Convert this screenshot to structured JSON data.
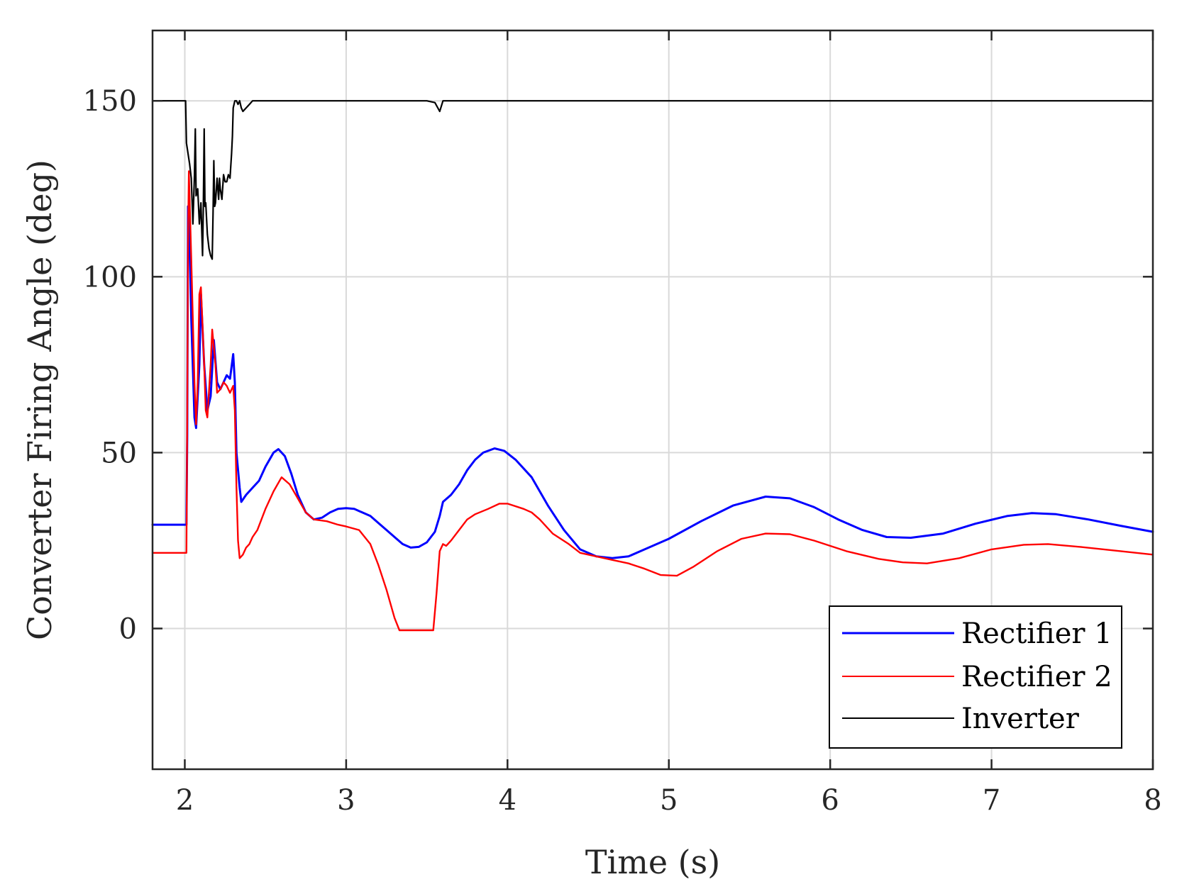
{
  "chart_data": {
    "type": "line",
    "title": "",
    "xlabel": "Time (s)",
    "ylabel": "Converter Firing Angle (deg)",
    "xlim": [
      1.8,
      8
    ],
    "ylim": [
      -40,
      170
    ],
    "xticks": [
      2,
      3,
      4,
      5,
      6,
      7,
      8
    ],
    "yticks": [
      0,
      50,
      100,
      150
    ],
    "xtick_labels": [
      "2",
      "3",
      "4",
      "5",
      "6",
      "7",
      "8"
    ],
    "ytick_labels": [
      "0",
      "50",
      "100",
      "150"
    ],
    "grid": true,
    "legend_position": "bottom-right",
    "series": [
      {
        "name": "Rectifier 1",
        "color": "#0000ff",
        "points": [
          [
            1.8,
            29.5
          ],
          [
            2.0,
            29.5
          ],
          [
            2.01,
            29.5
          ],
          [
            2.015,
            55
          ],
          [
            2.02,
            120
          ],
          [
            2.03,
            110
          ],
          [
            2.04,
            88
          ],
          [
            2.06,
            60
          ],
          [
            2.07,
            57
          ],
          [
            2.09,
            75
          ],
          [
            2.1,
            95
          ],
          [
            2.12,
            75
          ],
          [
            2.14,
            62
          ],
          [
            2.16,
            66
          ],
          [
            2.18,
            82
          ],
          [
            2.2,
            70
          ],
          [
            2.22,
            68
          ],
          [
            2.24,
            70
          ],
          [
            2.26,
            72
          ],
          [
            2.28,
            71
          ],
          [
            2.3,
            78
          ],
          [
            2.31,
            70
          ],
          [
            2.32,
            50
          ],
          [
            2.34,
            40
          ],
          [
            2.35,
            36
          ],
          [
            2.38,
            38
          ],
          [
            2.42,
            40
          ],
          [
            2.46,
            42
          ],
          [
            2.5,
            46
          ],
          [
            2.55,
            50
          ],
          [
            2.58,
            51
          ],
          [
            2.62,
            49
          ],
          [
            2.66,
            44
          ],
          [
            2.7,
            38
          ],
          [
            2.75,
            33
          ],
          [
            2.8,
            31
          ],
          [
            2.85,
            31.5
          ],
          [
            2.9,
            33
          ],
          [
            2.95,
            34
          ],
          [
            3.0,
            34.2
          ],
          [
            3.05,
            34
          ],
          [
            3.1,
            33
          ],
          [
            3.15,
            32
          ],
          [
            3.2,
            30
          ],
          [
            3.25,
            28
          ],
          [
            3.3,
            26
          ],
          [
            3.35,
            24
          ],
          [
            3.4,
            23
          ],
          [
            3.45,
            23.2
          ],
          [
            3.5,
            24.5
          ],
          [
            3.55,
            27.5
          ],
          [
            3.58,
            32
          ],
          [
            3.6,
            36
          ],
          [
            3.65,
            38
          ],
          [
            3.7,
            41
          ],
          [
            3.75,
            45
          ],
          [
            3.8,
            48
          ],
          [
            3.85,
            50
          ],
          [
            3.92,
            51.2
          ],
          [
            3.98,
            50.5
          ],
          [
            4.05,
            48
          ],
          [
            4.15,
            43
          ],
          [
            4.25,
            35
          ],
          [
            4.35,
            28
          ],
          [
            4.45,
            22.5
          ],
          [
            4.55,
            20.5
          ],
          [
            4.65,
            20
          ],
          [
            4.75,
            20.5
          ],
          [
            4.85,
            22.5
          ],
          [
            5.0,
            25.5
          ],
          [
            5.2,
            30.5
          ],
          [
            5.4,
            35
          ],
          [
            5.6,
            37.5
          ],
          [
            5.75,
            37
          ],
          [
            5.9,
            34.5
          ],
          [
            6.05,
            31
          ],
          [
            6.2,
            28
          ],
          [
            6.35,
            26
          ],
          [
            6.5,
            25.8
          ],
          [
            6.7,
            27
          ],
          [
            6.9,
            29.8
          ],
          [
            7.1,
            32
          ],
          [
            7.25,
            32.8
          ],
          [
            7.4,
            32.5
          ],
          [
            7.6,
            31
          ],
          [
            7.8,
            29.2
          ],
          [
            8.0,
            27.5
          ]
        ]
      },
      {
        "name": "Rectifier 2",
        "color": "#ff0000",
        "points": [
          [
            1.8,
            21.5
          ],
          [
            2.0,
            21.5
          ],
          [
            2.01,
            21.5
          ],
          [
            2.015,
            60
          ],
          [
            2.02,
            110
          ],
          [
            2.025,
            130
          ],
          [
            2.04,
            105
          ],
          [
            2.06,
            70
          ],
          [
            2.07,
            58
          ],
          [
            2.08,
            70
          ],
          [
            2.09,
            95
          ],
          [
            2.1,
            97
          ],
          [
            2.12,
            75
          ],
          [
            2.13,
            62
          ],
          [
            2.14,
            60
          ],
          [
            2.16,
            75
          ],
          [
            2.17,
            85
          ],
          [
            2.19,
            75
          ],
          [
            2.2,
            67
          ],
          [
            2.22,
            68
          ],
          [
            2.24,
            70
          ],
          [
            2.26,
            69
          ],
          [
            2.28,
            67
          ],
          [
            2.3,
            69
          ],
          [
            2.31,
            62
          ],
          [
            2.32,
            40
          ],
          [
            2.33,
            25
          ],
          [
            2.34,
            20
          ],
          [
            2.36,
            21
          ],
          [
            2.38,
            23
          ],
          [
            2.4,
            24
          ],
          [
            2.42,
            26
          ],
          [
            2.45,
            28
          ],
          [
            2.5,
            34
          ],
          [
            2.55,
            39
          ],
          [
            2.6,
            43
          ],
          [
            2.65,
            41
          ],
          [
            2.7,
            37
          ],
          [
            2.75,
            33
          ],
          [
            2.8,
            31
          ],
          [
            2.88,
            30.5
          ],
          [
            2.95,
            29.5
          ],
          [
            3.0,
            29
          ],
          [
            3.08,
            28
          ],
          [
            3.15,
            24
          ],
          [
            3.2,
            18
          ],
          [
            3.25,
            11
          ],
          [
            3.3,
            3
          ],
          [
            3.33,
            -0.5
          ],
          [
            3.45,
            -0.5
          ],
          [
            3.54,
            -0.5
          ],
          [
            3.56,
            10
          ],
          [
            3.58,
            22
          ],
          [
            3.6,
            24
          ],
          [
            3.62,
            23.5
          ],
          [
            3.65,
            25
          ],
          [
            3.7,
            28
          ],
          [
            3.75,
            31
          ],
          [
            3.8,
            32.5
          ],
          [
            3.88,
            34
          ],
          [
            3.95,
            35.5
          ],
          [
            4.0,
            35.5
          ],
          [
            4.1,
            34
          ],
          [
            4.15,
            33
          ],
          [
            4.2,
            31
          ],
          [
            4.28,
            27
          ],
          [
            4.38,
            24
          ],
          [
            4.45,
            21.5
          ],
          [
            4.55,
            20.5
          ],
          [
            4.65,
            19.5
          ],
          [
            4.75,
            18.5
          ],
          [
            4.85,
            17
          ],
          [
            4.95,
            15.2
          ],
          [
            5.05,
            15
          ],
          [
            5.15,
            17.5
          ],
          [
            5.3,
            22
          ],
          [
            5.45,
            25.5
          ],
          [
            5.6,
            27
          ],
          [
            5.75,
            26.8
          ],
          [
            5.9,
            25
          ],
          [
            6.1,
            22
          ],
          [
            6.3,
            19.8
          ],
          [
            6.45,
            18.8
          ],
          [
            6.6,
            18.5
          ],
          [
            6.8,
            20
          ],
          [
            7.0,
            22.5
          ],
          [
            7.2,
            23.8
          ],
          [
            7.35,
            24
          ],
          [
            7.55,
            23.2
          ],
          [
            7.8,
            22
          ],
          [
            8.0,
            21
          ]
        ]
      },
      {
        "name": "Inverter",
        "color": "#000000",
        "points": [
          [
            1.8,
            150
          ],
          [
            2.0,
            150
          ],
          [
            2.005,
            150
          ],
          [
            2.01,
            138
          ],
          [
            2.03,
            132
          ],
          [
            2.04,
            128
          ],
          [
            2.05,
            115
          ],
          [
            2.06,
            129
          ],
          [
            2.065,
            142
          ],
          [
            2.07,
            123
          ],
          [
            2.08,
            125
          ],
          [
            2.09,
            115
          ],
          [
            2.1,
            121
          ],
          [
            2.11,
            106
          ],
          [
            2.115,
            120
          ],
          [
            2.12,
            142
          ],
          [
            2.125,
            120
          ],
          [
            2.13,
            121
          ],
          [
            2.14,
            112
          ],
          [
            2.15,
            108
          ],
          [
            2.16,
            106
          ],
          [
            2.17,
            105
          ],
          [
            2.175,
            118
          ],
          [
            2.18,
            133
          ],
          [
            2.185,
            120
          ],
          [
            2.19,
            121
          ],
          [
            2.2,
            128
          ],
          [
            2.21,
            122
          ],
          [
            2.215,
            128
          ],
          [
            2.22,
            125
          ],
          [
            2.23,
            122
          ],
          [
            2.24,
            129
          ],
          [
            2.25,
            127
          ],
          [
            2.26,
            127
          ],
          [
            2.27,
            129
          ],
          [
            2.28,
            128
          ],
          [
            2.29,
            135
          ],
          [
            2.295,
            140
          ],
          [
            2.3,
            148
          ],
          [
            2.31,
            150
          ],
          [
            2.32,
            150
          ],
          [
            2.33,
            149
          ],
          [
            2.34,
            150
          ],
          [
            2.35,
            148
          ],
          [
            2.36,
            147
          ],
          [
            2.38,
            148
          ],
          [
            2.4,
            149
          ],
          [
            2.42,
            150
          ],
          [
            3.5,
            150
          ],
          [
            3.55,
            149.5
          ],
          [
            3.58,
            147
          ],
          [
            3.6,
            150
          ],
          [
            8.0,
            150
          ]
        ]
      }
    ]
  }
}
